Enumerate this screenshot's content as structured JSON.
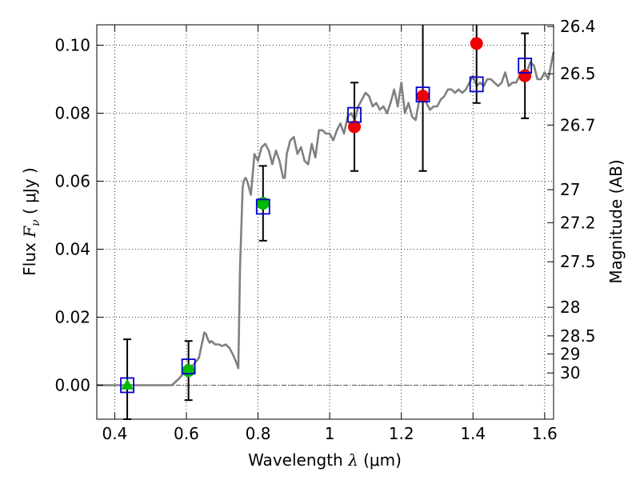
{
  "chart_data": {
    "type": "scatter",
    "xlabel": {
      "text": "Wavelength",
      "symbol": "λ",
      "unit": "(μm)"
    },
    "ylabel": {
      "text": "Flux",
      "symbol": "F",
      "subscript": "ν",
      "unit": "( μJy )"
    },
    "y2label": "Magnitude (AB)",
    "xlim": [
      0.35,
      1.625
    ],
    "ylim": [
      -0.01,
      0.106
    ],
    "grid": true,
    "xticks": [
      {
        "value": 0.4,
        "label": "0.4"
      },
      {
        "value": 0.6,
        "label": "0.6"
      },
      {
        "value": 0.8,
        "label": "0.8"
      },
      {
        "value": 1.0,
        "label": "1"
      },
      {
        "value": 1.2,
        "label": "1.2"
      },
      {
        "value": 1.4,
        "label": "1.4"
      },
      {
        "value": 1.6,
        "label": "1.6"
      }
    ],
    "yticks": [
      {
        "value": 0.0,
        "label": "0.00"
      },
      {
        "value": 0.02,
        "label": "0.02"
      },
      {
        "value": 0.04,
        "label": "0.04"
      },
      {
        "value": 0.06,
        "label": "0.06"
      },
      {
        "value": 0.08,
        "label": "0.08"
      },
      {
        "value": 0.1,
        "label": "0.10"
      }
    ],
    "y2ticks": [
      {
        "flux": 0.1055,
        "label": "26.4"
      },
      {
        "flux": 0.0916,
        "label": "26.5"
      },
      {
        "flux": 0.0765,
        "label": "26.7"
      },
      {
        "flux": 0.0575,
        "label": "27"
      },
      {
        "flux": 0.0478,
        "label": "27.2"
      },
      {
        "flux": 0.0363,
        "label": "27.5"
      },
      {
        "flux": 0.0229,
        "label": "28"
      },
      {
        "flux": 0.0145,
        "label": "28.5"
      },
      {
        "flux": 0.0092,
        "label": "29"
      },
      {
        "flux": 0.0036,
        "label": "30"
      }
    ],
    "model_spectrum": {
      "color": "#808080",
      "x": [
        0.35,
        0.56,
        0.58,
        0.6,
        0.62,
        0.635,
        0.645,
        0.65,
        0.655,
        0.66,
        0.665,
        0.67,
        0.68,
        0.69,
        0.7,
        0.71,
        0.72,
        0.73,
        0.74,
        0.745,
        0.75,
        0.753,
        0.757,
        0.76,
        0.765,
        0.77,
        0.78,
        0.79,
        0.8,
        0.81,
        0.82,
        0.83,
        0.84,
        0.85,
        0.86,
        0.87,
        0.875,
        0.88,
        0.89,
        0.9,
        0.91,
        0.92,
        0.93,
        0.94,
        0.95,
        0.96,
        0.97,
        0.98,
        0.99,
        1.0,
        1.01,
        1.02,
        1.03,
        1.04,
        1.05,
        1.06,
        1.07,
        1.08,
        1.09,
        1.1,
        1.11,
        1.12,
        1.13,
        1.14,
        1.15,
        1.16,
        1.17,
        1.18,
        1.19,
        1.2,
        1.21,
        1.22,
        1.23,
        1.24,
        1.25,
        1.26,
        1.27,
        1.28,
        1.29,
        1.3,
        1.31,
        1.32,
        1.33,
        1.34,
        1.35,
        1.36,
        1.37,
        1.38,
        1.39,
        1.4,
        1.41,
        1.42,
        1.43,
        1.44,
        1.45,
        1.46,
        1.47,
        1.48,
        1.49,
        1.5,
        1.51,
        1.52,
        1.53,
        1.54,
        1.55,
        1.56,
        1.57,
        1.58,
        1.59,
        1.6,
        1.61,
        1.625
      ],
      "y": [
        0.0,
        0.0,
        0.002,
        0.0045,
        0.006,
        0.008,
        0.013,
        0.0155,
        0.015,
        0.0135,
        0.0125,
        0.013,
        0.012,
        0.012,
        0.0115,
        0.012,
        0.011,
        0.009,
        0.0065,
        0.005,
        0.035,
        0.045,
        0.058,
        0.06,
        0.061,
        0.06,
        0.056,
        0.068,
        0.066,
        0.07,
        0.071,
        0.069,
        0.065,
        0.069,
        0.066,
        0.061,
        0.061,
        0.068,
        0.072,
        0.073,
        0.068,
        0.07,
        0.066,
        0.065,
        0.071,
        0.067,
        0.075,
        0.075,
        0.074,
        0.074,
        0.072,
        0.075,
        0.077,
        0.074,
        0.079,
        0.08,
        0.078,
        0.082,
        0.084,
        0.086,
        0.085,
        0.082,
        0.083,
        0.081,
        0.082,
        0.08,
        0.083,
        0.087,
        0.082,
        0.089,
        0.08,
        0.083,
        0.079,
        0.078,
        0.084,
        0.085,
        0.083,
        0.081,
        0.082,
        0.082,
        0.084,
        0.085,
        0.087,
        0.087,
        0.086,
        0.087,
        0.086,
        0.087,
        0.089,
        0.091,
        0.088,
        0.089,
        0.088,
        0.09,
        0.09,
        0.089,
        0.088,
        0.089,
        0.092,
        0.088,
        0.089,
        0.089,
        0.091,
        0.092,
        0.092,
        0.095,
        0.094,
        0.09,
        0.09,
        0.092,
        0.09,
        0.098
      ]
    },
    "model_photometry": {
      "marker": "open-square",
      "color": "#0000cc",
      "points": [
        {
          "x": 0.435,
          "y": 0.0
        },
        {
          "x": 0.606,
          "y": 0.0055
        },
        {
          "x": 0.814,
          "y": 0.0525
        },
        {
          "x": 1.069,
          "y": 0.0795
        },
        {
          "x": 1.26,
          "y": 0.0855
        },
        {
          "x": 1.41,
          "y": 0.0885
        },
        {
          "x": 1.545,
          "y": 0.094
        }
      ]
    },
    "observed_optical": {
      "color": "#00bb00",
      "points": [
        {
          "x": 0.435,
          "y": 0.0,
          "err": 0.0135,
          "marker": "triangle"
        },
        {
          "x": 0.606,
          "y": 0.0043,
          "err": 0.0087,
          "marker": "circle"
        },
        {
          "x": 0.814,
          "y": 0.0535,
          "err": 0.011,
          "marker": "circle"
        }
      ]
    },
    "observed_nir": {
      "color": "#ee0000",
      "marker": "circle",
      "points": [
        {
          "x": 1.069,
          "y": 0.076,
          "err": 0.013
        },
        {
          "x": 1.26,
          "y": 0.085,
          "err": 0.022
        },
        {
          "x": 1.41,
          "y": 0.1005,
          "err": 0.0175
        },
        {
          "x": 1.545,
          "y": 0.091,
          "err": 0.0125
        }
      ]
    },
    "zero_line": 0.0
  }
}
